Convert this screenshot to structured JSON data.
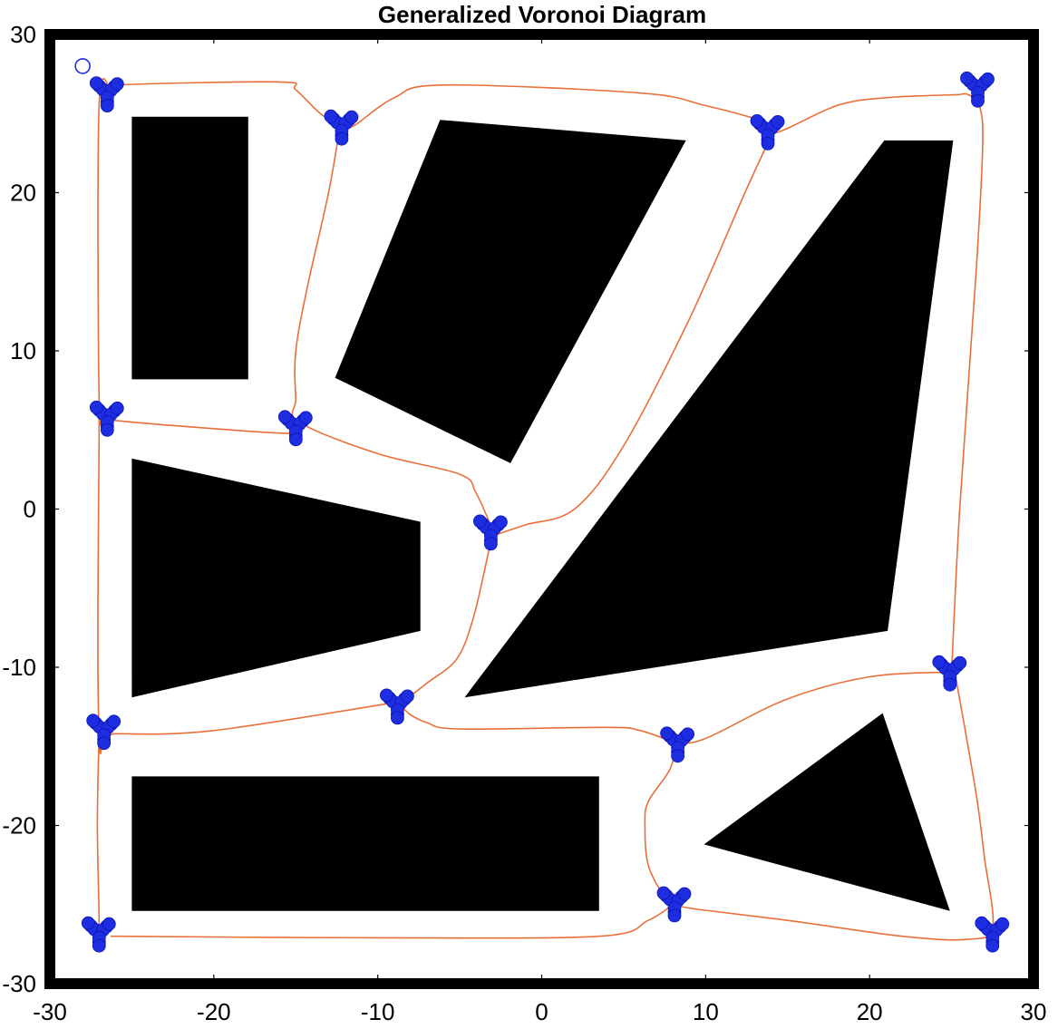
{
  "chart_data": {
    "type": "diagram",
    "title": "Generalized Voronoi Diagram",
    "xlim": [
      -30,
      30
    ],
    "ylim": [
      -30,
      30
    ],
    "x_ticks": [
      -30,
      -20,
      -10,
      0,
      10,
      20,
      30
    ],
    "y_ticks": [
      -30,
      -20,
      -10,
      0,
      10,
      20,
      30
    ],
    "x_tick_labels": [
      "-30",
      "-20",
      "-10",
      "0",
      "10",
      "20",
      "30"
    ],
    "y_tick_labels": [
      "-30",
      "-20",
      "-10",
      "0",
      "10",
      "20",
      "30"
    ],
    "colors": {
      "obstacle": "#000000",
      "edge": "#e8703a",
      "node": "#1f2de0",
      "frame": "#000000"
    },
    "boundary_wall": "thick black frame",
    "obstacles": [
      {
        "name": "rectangle-top-left",
        "points": [
          [
            -25,
            24.8
          ],
          [
            -17.9,
            24.8
          ],
          [
            -17.9,
            8.2
          ],
          [
            -25,
            8.2
          ]
        ]
      },
      {
        "name": "quad-top-center",
        "points": [
          [
            -6.2,
            24.6
          ],
          [
            8.8,
            23.3
          ],
          [
            -1.9,
            2.9
          ],
          [
            -12.6,
            8.3
          ]
        ]
      },
      {
        "name": "quad-middle-left",
        "points": [
          [
            -25,
            3.2
          ],
          [
            -7.4,
            -0.8
          ],
          [
            -7.4,
            -7.7
          ],
          [
            -25,
            -11.9
          ]
        ]
      },
      {
        "name": "triangle-large-right",
        "points": [
          [
            20.9,
            23.3
          ],
          [
            25.1,
            23.3
          ],
          [
            21.1,
            -7.7
          ],
          [
            -4.7,
            -11.9
          ]
        ]
      },
      {
        "name": "triangle-bottom-right",
        "points": [
          [
            20.8,
            -12.9
          ],
          [
            24.9,
            -25.4
          ],
          [
            9.9,
            -21.2
          ]
        ]
      },
      {
        "name": "rectangle-bottom",
        "points": [
          [
            -25,
            -16.9
          ],
          [
            3.5,
            -16.9
          ],
          [
            3.5,
            -25.4
          ],
          [
            -25,
            -25.4
          ]
        ]
      }
    ],
    "edges": [
      [
        [
          -27,
          26.5
        ],
        [
          -26.2,
          26.8
        ],
        [
          -16,
          27
        ],
        [
          -15,
          26.5
        ],
        [
          -13.5,
          25
        ],
        [
          -12.2,
          24.2
        ],
        [
          -11.5,
          24.2
        ],
        [
          -9,
          26
        ],
        [
          -6,
          26.8
        ],
        [
          6,
          26.3
        ],
        [
          10,
          25.5
        ],
        [
          13.5,
          24.5
        ],
        [
          14.3,
          23.8
        ],
        [
          18,
          25.5
        ],
        [
          21,
          26
        ],
        [
          25.5,
          26.2
        ]
      ],
      [
        [
          -26.3,
          26.5
        ],
        [
          -27,
          25.5
        ],
        [
          -27,
          7
        ],
        [
          -26.7,
          6
        ],
        [
          -26,
          5.6
        ],
        [
          -16,
          4.8
        ],
        [
          -15,
          5
        ]
      ],
      [
        [
          -12.3,
          24.2
        ],
        [
          -13,
          20
        ],
        [
          -14.3,
          14
        ],
        [
          -15,
          10
        ],
        [
          -15,
          7
        ],
        [
          -14.8,
          5.5
        ],
        [
          -10,
          3.5
        ],
        [
          -5,
          2.2
        ],
        [
          -4,
          1
        ],
        [
          -3,
          -1.3
        ]
      ],
      [
        [
          14,
          23.6
        ],
        [
          12.4,
          20
        ],
        [
          9,
          12
        ],
        [
          5,
          4
        ],
        [
          2,
          0
        ],
        [
          -1,
          -1
        ],
        [
          -3,
          -1.7
        ]
      ],
      [
        [
          -3,
          -1.6
        ],
        [
          -3.3,
          -3
        ],
        [
          -4.2,
          -7
        ],
        [
          -5.2,
          -9.5
        ],
        [
          -7,
          -11
        ],
        [
          -8.6,
          -12.3
        ]
      ],
      [
        [
          -27,
          5.8
        ],
        [
          -27,
          5
        ],
        [
          -27,
          -14
        ],
        [
          -26,
          -14.2
        ],
        [
          -20,
          -14
        ],
        [
          -8.8,
          -12.2
        ]
      ],
      [
        [
          -8.5,
          -12.5
        ],
        [
          -8,
          -13
        ],
        [
          -7,
          -13.5
        ],
        [
          -5,
          -13.9
        ],
        [
          4,
          -13.8
        ],
        [
          6,
          -14
        ],
        [
          8.2,
          -14.8
        ]
      ],
      [
        [
          8.2,
          -14.8
        ],
        [
          10,
          -14.5
        ],
        [
          15,
          -12
        ],
        [
          20,
          -10.6
        ],
        [
          25,
          -10.3
        ]
      ],
      [
        [
          25,
          -10.3
        ],
        [
          25.5,
          0
        ],
        [
          26.5,
          15
        ],
        [
          26.9,
          23
        ],
        [
          26.7,
          25.5
        ],
        [
          26,
          26.2
        ],
        [
          25.5,
          26.2
        ]
      ],
      [
        [
          25.2,
          -10.3
        ],
        [
          26.5,
          -18
        ],
        [
          27,
          -22
        ],
        [
          27.5,
          -26.4
        ],
        [
          26,
          -27.2
        ],
        [
          22,
          -27
        ],
        [
          15,
          -26
        ],
        [
          9.5,
          -25.3
        ],
        [
          8,
          -25
        ]
      ],
      [
        [
          8.2,
          -15
        ],
        [
          7.8,
          -16.5
        ],
        [
          6.5,
          -18.5
        ],
        [
          6.3,
          -20
        ],
        [
          6.5,
          -22.5
        ],
        [
          7.5,
          -24.5
        ],
        [
          8.2,
          -25
        ]
      ],
      [
        [
          8,
          -25
        ],
        [
          6.5,
          -26
        ],
        [
          3.5,
          -27
        ],
        [
          -10,
          -27.1
        ],
        [
          -26.3,
          -27
        ]
      ],
      [
        [
          -27,
          -14.3
        ],
        [
          -27.1,
          -20
        ],
        [
          -27,
          -26.5
        ],
        [
          -27.2,
          -27.5
        ]
      ]
    ],
    "nodes": [
      [
        -26.5,
        26.3
      ],
      [
        -12.2,
        24.2
      ],
      [
        13.8,
        23.9
      ],
      [
        26.6,
        26.6
      ],
      [
        -26.5,
        5.8
      ],
      [
        -15,
        5.2
      ],
      [
        -3.1,
        -1.4
      ],
      [
        -26.7,
        -14
      ],
      [
        -8.8,
        -12.4
      ],
      [
        8.3,
        -14.8
      ],
      [
        24.9,
        -10.3
      ],
      [
        -27,
        -26.8
      ],
      [
        8.1,
        -24.9
      ],
      [
        27.5,
        -26.8
      ]
    ],
    "start_marker": [
      -28,
      28
    ]
  }
}
